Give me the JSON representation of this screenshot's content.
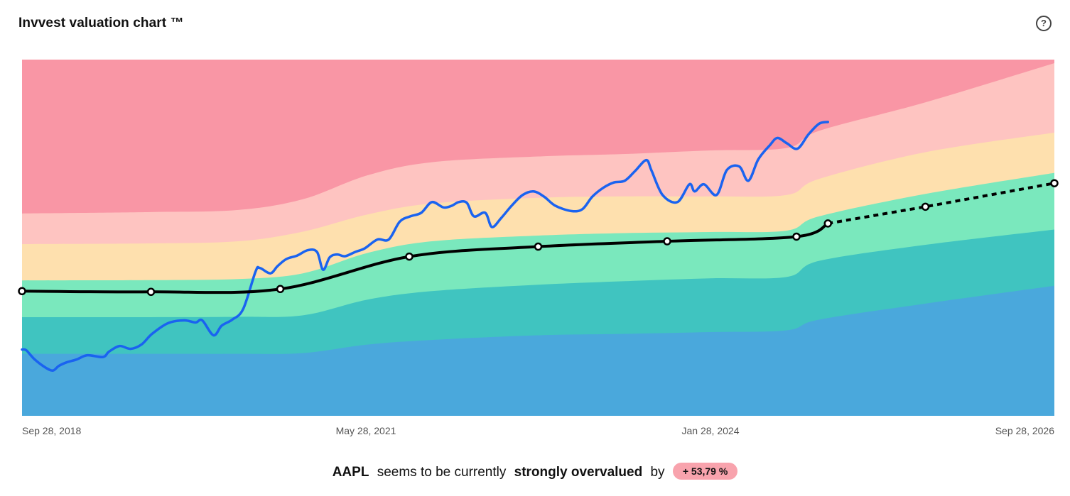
{
  "header": {
    "title": "Invvest valuation chart ™",
    "help_glyph": "?"
  },
  "verdict": {
    "ticker": "AAPL",
    "text_before": "seems to be currently",
    "assessment": "strongly overvalued",
    "text_after": "by",
    "badge": "+ 53,79 %"
  },
  "chart_data": {
    "type": "area",
    "x_ticks": [
      "Sep 28, 2018",
      "May 28, 2021",
      "Jan 28, 2024",
      "Sep 28, 2026"
    ],
    "xlim": [
      "2018-09-28",
      "2026-09-28"
    ],
    "ylim": [
      0,
      1000
    ],
    "colors": {
      "band_1": "#4aa8dc",
      "band_2": "#40c4c0",
      "band_3": "#7ae8bd",
      "band_4": "#fee0ae",
      "band_5": "#fec4c1",
      "band_6": "#f996a5",
      "price": "#1a63f0",
      "fair_value": "#000000"
    },
    "bands": {
      "x": [
        "2018-09-28",
        "2019-09-28",
        "2020-06-01",
        "2020-12-01",
        "2021-06-01",
        "2021-12-01",
        "2022-09-28",
        "2023-06-01",
        "2024-01-28",
        "2024-09-01",
        "2024-12-01",
        "2025-09-28",
        "2026-09-28"
      ],
      "bounds": [
        [
          174,
          174,
          174,
          176,
          200,
          213,
          226,
          230,
          235,
          240,
          270,
          315,
          365
        ],
        [
          277,
          277,
          278,
          282,
          326,
          350,
          368,
          378,
          386,
          390,
          435,
          480,
          523
        ],
        [
          380,
          381,
          384,
          400,
          457,
          490,
          506,
          513,
          516,
          520,
          560,
          623,
          682
        ],
        [
          482,
          484,
          490,
          517,
          565,
          596,
          612,
          616,
          616,
          620,
          665,
          740,
          795
        ],
        [
          568,
          572,
          578,
          608,
          675,
          712,
          728,
          735,
          745,
          752,
          800,
          880,
          990
        ],
        [
          1000,
          1000,
          1000,
          1000,
          1000,
          1000,
          1000,
          1000,
          1000,
          1000,
          1000,
          1000,
          1000
        ]
      ]
    },
    "fair_value": {
      "x": [
        "2018-09-28",
        "2019-09-28",
        "2020-09-28",
        "2021-09-28",
        "2022-09-28",
        "2023-09-28",
        "2024-09-28",
        "2024-12-26"
      ],
      "values": [
        350,
        348,
        356,
        447,
        475,
        490,
        503,
        540
      ],
      "projection_x": [
        "2024-12-26",
        "2025-09-28",
        "2026-09-28"
      ],
      "projection_values": [
        540,
        587,
        653
      ]
    },
    "price": {
      "x": [
        "2018-09-28",
        "2018-10-10",
        "2018-11-01",
        "2018-12-01",
        "2018-12-24",
        "2019-01-10",
        "2019-02-01",
        "2019-03-01",
        "2019-04-01",
        "2019-05-15",
        "2019-06-01",
        "2019-07-01",
        "2019-08-01",
        "2019-09-01",
        "2019-10-01",
        "2019-11-15",
        "2019-12-31",
        "2020-02-01",
        "2020-02-20",
        "2020-03-23",
        "2020-04-15",
        "2020-05-15",
        "2020-06-15",
        "2020-07-20",
        "2020-08-01",
        "2020-08-31",
        "2020-09-20",
        "2020-10-15",
        "2020-11-15",
        "2020-12-15",
        "2021-01-10",
        "2021-01-27",
        "2021-02-15",
        "2021-03-08",
        "2021-03-30",
        "2021-04-28",
        "2021-05-25",
        "2021-06-30",
        "2021-08-01",
        "2021-09-01",
        "2021-10-01",
        "2021-11-01",
        "2021-12-01",
        "2022-01-03",
        "2022-01-27",
        "2022-02-15",
        "2022-03-10",
        "2022-03-30",
        "2022-05-01",
        "2022-05-20",
        "2022-06-15",
        "2022-07-15",
        "2022-08-15",
        "2022-09-15",
        "2022-10-15",
        "2022-11-15",
        "2022-12-30",
        "2023-01-31",
        "2023-02-28",
        "2023-03-31",
        "2023-04-30",
        "2023-05-31",
        "2023-06-30",
        "2023-07-31",
        "2023-08-15",
        "2023-09-15",
        "2023-10-27",
        "2023-11-30",
        "2023-12-15",
        "2024-01-10",
        "2024-02-15",
        "2024-03-15",
        "2024-04-19",
        "2024-05-15",
        "2024-06-12",
        "2024-07-15",
        "2024-08-05",
        "2024-09-01",
        "2024-10-01",
        "2024-11-01",
        "2024-12-01",
        "2024-12-26"
      ],
      "values": [
        186,
        184,
        160,
        137,
        127,
        140,
        150,
        158,
        170,
        165,
        180,
        196,
        188,
        200,
        230,
        260,
        268,
        262,
        268,
        226,
        253,
        270,
        300,
        405,
        415,
        400,
        420,
        440,
        450,
        465,
        460,
        410,
        445,
        453,
        448,
        460,
        470,
        495,
        495,
        545,
        560,
        570,
        600,
        585,
        590,
        600,
        598,
        560,
        570,
        530,
        555,
        590,
        620,
        630,
        615,
        590,
        575,
        580,
        615,
        640,
        655,
        660,
        688,
        718,
        688,
        620,
        600,
        650,
        630,
        650,
        620,
        690,
        700,
        660,
        720,
        760,
        780,
        765,
        750,
        790,
        820,
        825
      ]
    }
  }
}
